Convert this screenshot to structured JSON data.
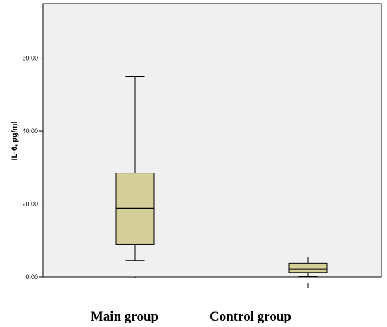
{
  "chart_data": {
    "type": "boxplot",
    "ylabel": "IL-6, pg/ml",
    "ylim": [
      0,
      75
    ],
    "yticks": [
      0,
      20,
      40,
      60
    ],
    "ytick_labels": [
      "0.00",
      "20.00",
      "40.00",
      "60.00"
    ],
    "grid": false,
    "categories": [
      "Main group",
      "Control group"
    ],
    "boxes": [
      {
        "category": "Main group",
        "min": 4.5,
        "q1": 9,
        "median": 18.8,
        "q3": 28.5,
        "max": 55
      },
      {
        "category": "Control group",
        "min": 0.2,
        "q1": 1.2,
        "median": 2.2,
        "q3": 3.8,
        "max": 5.5
      }
    ],
    "colors": {
      "plot_bg": "#f0f0f0",
      "box_fill": "#d4cf99",
      "stroke": "#000000"
    }
  }
}
